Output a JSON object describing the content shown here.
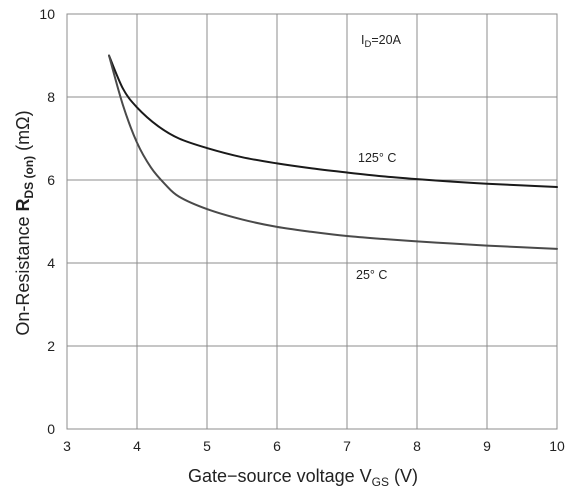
{
  "chart_data": {
    "type": "line",
    "xlim": [
      3,
      10
    ],
    "ylim": [
      0,
      10
    ],
    "x_ticks": [
      3,
      4,
      5,
      6,
      7,
      8,
      9,
      10
    ],
    "y_ticks": [
      0,
      2,
      4,
      6,
      8,
      10
    ],
    "grid": true,
    "xlabel": {
      "main": "Gate−source voltage V",
      "sub": "GS",
      "unit": " (V)"
    },
    "ylabel": {
      "pre": "On-Resistance ",
      "bold": "R",
      "sub": "DS (on)",
      "unit": " (mΩ)"
    },
    "annotations": {
      "condition": {
        "main": "I",
        "sub": "D",
        "rest": "=20A"
      },
      "label_125": "125° C",
      "label_25": "25° C"
    },
    "series": [
      {
        "x": [
          3.6,
          3.8,
          4.0,
          4.3,
          4.6,
          5.0,
          5.5,
          6.0,
          6.5,
          7.0,
          7.5,
          8.0,
          8.5,
          9.0,
          9.5,
          10.0
        ],
        "values": [
          9.0,
          8.2,
          7.75,
          7.3,
          7.0,
          6.77,
          6.55,
          6.4,
          6.28,
          6.18,
          6.09,
          6.02,
          5.96,
          5.91,
          5.87,
          5.83
        ],
        "color": "#1a1a1a"
      },
      {
        "x": [
          3.6,
          3.8,
          4.0,
          4.2,
          4.4,
          4.6,
          5.0,
          5.5,
          6.0,
          6.5,
          7.0,
          7.5,
          8.0,
          8.5,
          9.0,
          9.5,
          10.0
        ],
        "values": [
          9.0,
          7.8,
          6.9,
          6.3,
          5.9,
          5.6,
          5.3,
          5.05,
          4.87,
          4.75,
          4.65,
          4.58,
          4.52,
          4.47,
          4.42,
          4.38,
          4.34
        ],
        "color": "#4a4a4a"
      }
    ]
  }
}
